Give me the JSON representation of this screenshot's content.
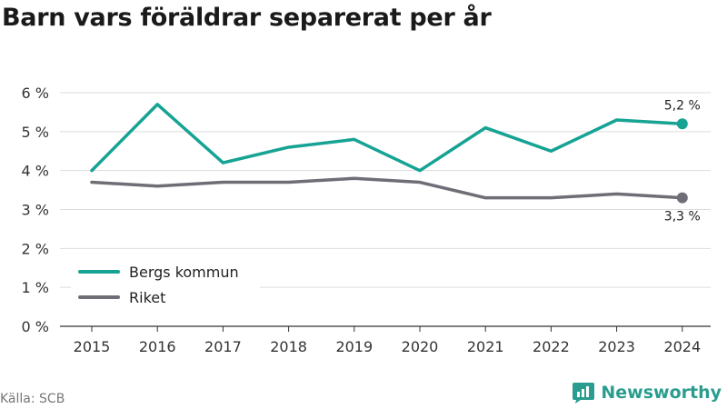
{
  "title": "Barn vars föräldrar separerat per år",
  "source": "Källa: SCB",
  "brand": {
    "name": "Newsworthy",
    "icon": "newsworthy-logo-icon",
    "color": "#2a9d8f"
  },
  "chart_data": {
    "type": "line",
    "x": [
      "2015",
      "2016",
      "2017",
      "2018",
      "2019",
      "2020",
      "2021",
      "2022",
      "2023",
      "2024"
    ],
    "y_ticks": [
      "0 %",
      "1 %",
      "2 %",
      "3 %",
      "4 %",
      "5 %",
      "6 %"
    ],
    "ylim": [
      0,
      6
    ],
    "grid": true,
    "legend_position": "bottom-left",
    "series": [
      {
        "name": "Bergs kommun",
        "color": "#16a394",
        "values": [
          4.0,
          5.7,
          4.2,
          4.6,
          4.8,
          4.0,
          5.1,
          4.5,
          5.3,
          5.2
        ],
        "end_label": "5,2 %"
      },
      {
        "name": "Riket",
        "color": "#6f6e76",
        "values": [
          3.7,
          3.6,
          3.7,
          3.7,
          3.8,
          3.7,
          3.3,
          3.3,
          3.4,
          3.3
        ],
        "end_label": "3,3 %"
      }
    ]
  }
}
